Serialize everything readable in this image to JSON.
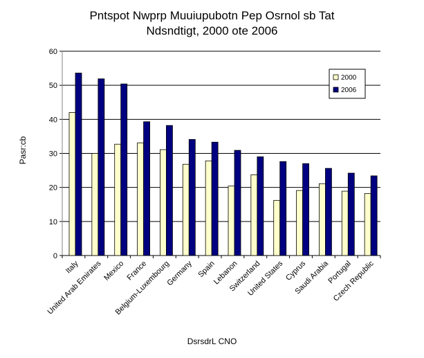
{
  "chart_data": {
    "type": "bar",
    "title_lines": [
      "Pntspot Nwprp Muuiupubotn Pep Osrnol sb Tat",
      "Ndsndtigt, 2000 ote 2006"
    ],
    "xlabel": "DsrsdrL CNO",
    "ylabel": "Pasr:cb",
    "ylim": [
      0,
      60
    ],
    "yticks": [
      0,
      10,
      20,
      30,
      40,
      50,
      60
    ],
    "grid": true,
    "legend_position": "top-right",
    "categories": [
      "Italy",
      "United Arab Emirates",
      "Mexico",
      "France",
      "Belgium-Luxembourg",
      "Germany",
      "Spain",
      "Lebanon",
      "Switzerland",
      "United States",
      "Cyprus",
      "Saudi Arabia",
      "Portugal",
      "Czech Republic"
    ],
    "series": [
      {
        "name": "2000",
        "color": "#ffffcc",
        "values": [
          42.0,
          30.0,
          32.7,
          33.1,
          31.1,
          26.8,
          27.8,
          20.4,
          23.7,
          16.2,
          19.1,
          21.1,
          18.9,
          18.2
        ]
      },
      {
        "name": "2006",
        "color": "#000080",
        "values": [
          53.6,
          51.9,
          50.4,
          39.3,
          38.2,
          34.1,
          33.3,
          30.9,
          29.0,
          27.6,
          27.0,
          25.6,
          24.2,
          23.4
        ]
      }
    ]
  }
}
